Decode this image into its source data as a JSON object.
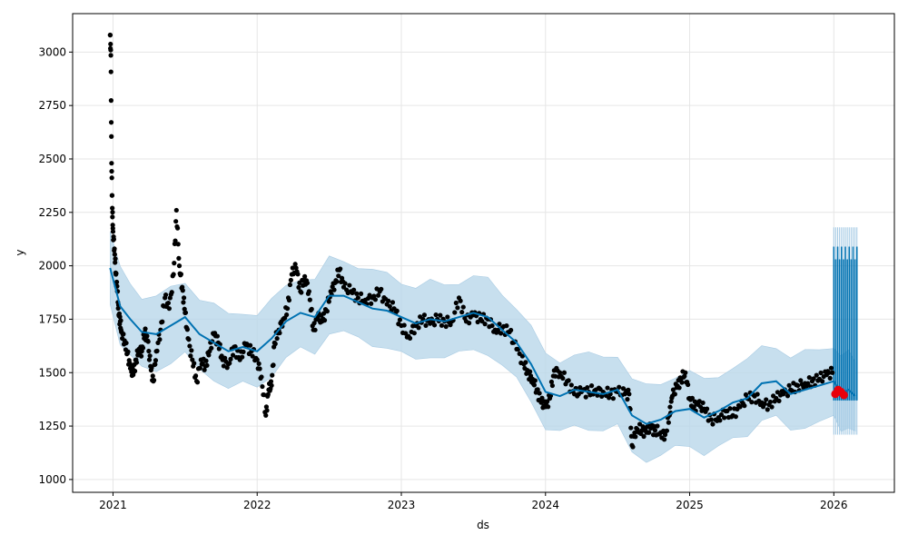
{
  "chart_data": {
    "type": "scatter",
    "xlabel": "ds",
    "ylabel": "y",
    "xlim": [
      2020.72,
      2026.42
    ],
    "ylim": [
      940,
      3180
    ],
    "x_ticks": [
      2021,
      2022,
      2023,
      2024,
      2025,
      2026
    ],
    "x_tick_labels": [
      "2021",
      "2022",
      "2023",
      "2024",
      "2025",
      "2026"
    ],
    "y_ticks": [
      1000,
      1250,
      1500,
      1750,
      2000,
      2250,
      2500,
      2750,
      3000
    ],
    "y_tick_labels": [
      "1000",
      "1250",
      "1500",
      "1750",
      "2000",
      "2250",
      "2500",
      "2750",
      "3000"
    ],
    "grid": true,
    "colors": {
      "observed": "#000000",
      "forecast_line": "#0072B2",
      "uncertainty_band": "#b9d7ea",
      "highlight": "#e8000b"
    },
    "observed": {
      "x": [
        2020.98,
        2020.985,
        2020.99,
        2020.995,
        2021.0,
        2021.01,
        2021.02,
        2021.03,
        2021.04,
        2021.05,
        2021.06,
        2021.08,
        2021.1,
        2021.12,
        2021.14,
        2021.16,
        2021.18,
        2021.2,
        2021.22,
        2021.24,
        2021.26,
        2021.28,
        2021.3,
        2021.33,
        2021.36,
        2021.39,
        2021.42,
        2021.44,
        2021.46,
        2021.48,
        2021.5,
        2021.52,
        2021.55,
        2021.58,
        2021.61,
        2021.64,
        2021.67,
        2021.7,
        2021.73,
        2021.76,
        2021.8,
        2021.84,
        2021.88,
        2021.92,
        2021.96,
        2022.0,
        2022.03,
        2022.06,
        2022.08,
        2022.1,
        2022.12,
        2022.15,
        2022.18,
        2022.21,
        2022.24,
        2022.27,
        2022.3,
        2022.33,
        2022.36,
        2022.39,
        2022.42,
        2022.45,
        2022.48,
        2022.51,
        2022.54,
        2022.57,
        2022.6,
        2022.65,
        2022.7,
        2022.75,
        2022.8,
        2022.85,
        2022.9,
        2022.95,
        2023.0,
        2023.05,
        2023.1,
        2023.15,
        2023.2,
        2023.25,
        2023.3,
        2023.35,
        2023.4,
        2023.45,
        2023.5,
        2023.55,
        2023.6,
        2023.65,
        2023.7,
        2023.75,
        2023.8,
        2023.85,
        2023.88,
        2023.91,
        2023.94,
        2023.97,
        2024.0,
        2024.03,
        2024.06,
        2024.1,
        2024.15,
        2024.2,
        2024.25,
        2024.3,
        2024.35,
        2024.4,
        2024.45,
        2024.5,
        2024.55,
        2024.58,
        2024.6,
        2024.63,
        2024.67,
        2024.7,
        2024.73,
        2024.76,
        2024.8,
        2024.83,
        2024.86,
        2024.88,
        2024.91,
        2024.94,
        2024.97,
        2025.0,
        2025.03,
        2025.06,
        2025.1,
        2025.15,
        2025.2,
        2025.25,
        2025.3,
        2025.35,
        2025.4,
        2025.45,
        2025.5,
        2025.55,
        2025.6,
        2025.65,
        2025.7,
        2025.75,
        2025.8,
        2025.85,
        2025.9,
        2025.95,
        2025.99
      ],
      "y": [
        3080,
        2985,
        2480,
        2270,
        2160,
        2080,
        1960,
        1880,
        1770,
        1740,
        1690,
        1650,
        1590,
        1520,
        1490,
        1560,
        1610,
        1600,
        1690,
        1650,
        1530,
        1460,
        1600,
        1700,
        1850,
        1800,
        1960,
        2260,
        2000,
        1900,
        1780,
        1660,
        1560,
        1460,
        1560,
        1530,
        1600,
        1680,
        1640,
        1560,
        1540,
        1620,
        1560,
        1630,
        1600,
        1560,
        1480,
        1300,
        1420,
        1440,
        1640,
        1700,
        1750,
        1800,
        1960,
        1990,
        1880,
        1950,
        1880,
        1700,
        1760,
        1740,
        1790,
        1880,
        1920,
        1980,
        1900,
        1880,
        1850,
        1840,
        1850,
        1880,
        1820,
        1800,
        1720,
        1670,
        1720,
        1750,
        1730,
        1750,
        1740,
        1740,
        1850,
        1740,
        1770,
        1750,
        1750,
        1700,
        1710,
        1690,
        1610,
        1540,
        1500,
        1470,
        1420,
        1360,
        1340,
        1380,
        1510,
        1500,
        1460,
        1400,
        1410,
        1410,
        1420,
        1410,
        1400,
        1410,
        1400,
        1400,
        1160,
        1240,
        1230,
        1220,
        1240,
        1230,
        1220,
        1210,
        1300,
        1390,
        1430,
        1470,
        1500,
        1380,
        1340,
        1350,
        1330,
        1280,
        1290,
        1320,
        1300,
        1340,
        1380,
        1390,
        1360,
        1350,
        1380,
        1400,
        1420,
        1440,
        1450,
        1460,
        1470,
        1490,
        1500
      ]
    },
    "trend": {
      "x": [
        2020.98,
        2021.05,
        2021.12,
        2021.2,
        2021.3,
        2021.4,
        2021.5,
        2021.6,
        2021.7,
        2021.8,
        2021.9,
        2022.0,
        2022.1,
        2022.2,
        2022.3,
        2022.4,
        2022.5,
        2022.6,
        2022.7,
        2022.8,
        2022.9,
        2023.0,
        2023.1,
        2023.2,
        2023.3,
        2023.4,
        2023.5,
        2023.6,
        2023.7,
        2023.8,
        2023.9,
        2024.0,
        2024.1,
        2024.2,
        2024.3,
        2024.4,
        2024.5,
        2024.6,
        2024.7,
        2024.8,
        2024.9,
        2025.0,
        2025.1,
        2025.2,
        2025.3,
        2025.4,
        2025.5,
        2025.6,
        2025.7,
        2025.8,
        2025.9,
        2026.0,
        2026.05,
        2026.1,
        2026.15
      ],
      "y": [
        1990,
        1810,
        1750,
        1690,
        1680,
        1720,
        1760,
        1680,
        1640,
        1600,
        1620,
        1600,
        1660,
        1740,
        1780,
        1760,
        1860,
        1860,
        1830,
        1800,
        1790,
        1760,
        1730,
        1750,
        1740,
        1760,
        1780,
        1760,
        1700,
        1640,
        1540,
        1410,
        1390,
        1420,
        1410,
        1400,
        1420,
        1300,
        1260,
        1280,
        1320,
        1330,
        1290,
        1320,
        1360,
        1380,
        1450,
        1460,
        1400,
        1420,
        1440,
        1460,
        1400,
        1420,
        1390
      ]
    },
    "band_width": 170,
    "forecast_band": {
      "x_start": 2026.0,
      "x_end": 2026.16,
      "ribbon_low": 1210,
      "ribbon_high": 2180,
      "solid_low": 1370,
      "solid_high": 2090
    },
    "highlight_points": {
      "x": [
        2026.01,
        2026.03,
        2026.05,
        2026.07
      ],
      "y": [
        1400,
        1420,
        1410,
        1395
      ]
    }
  }
}
